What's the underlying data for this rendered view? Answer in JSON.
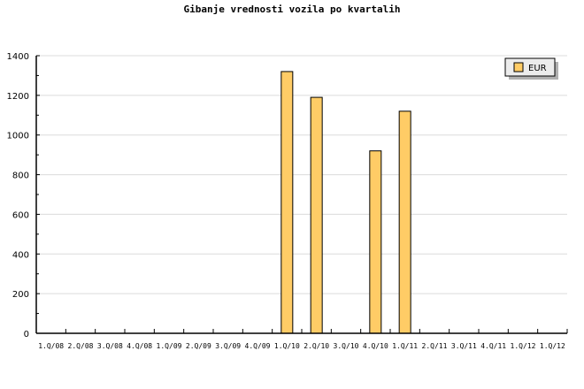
{
  "chart_data": {
    "type": "bar",
    "title": "Gibanje vrednosti vozila po kvartalih",
    "xlabel": "",
    "ylabel": "",
    "categories": [
      "1.Q/08",
      "2.Q/08",
      "3.Q/08",
      "4.Q/08",
      "1.Q/09",
      "2.Q/09",
      "3.Q/09",
      "4.Q/09",
      "1.Q/10",
      "2.Q/10",
      "3.Q/10",
      "4.Q/10",
      "1.Q/11",
      "2.Q/11",
      "3.Q/11",
      "4.Q/11",
      "1.Q/12",
      "1.Q/12"
    ],
    "series": [
      {
        "name": "EUR",
        "color": "#ffcc66",
        "values": [
          0,
          0,
          0,
          0,
          0,
          0,
          0,
          0,
          1320,
          1190,
          0,
          920,
          1120,
          0,
          0,
          0,
          0,
          0
        ]
      }
    ],
    "ylim": [
      0,
      1400
    ],
    "yticks": [
      0,
      200,
      400,
      600,
      800,
      1000,
      1200,
      1400
    ],
    "grid": true,
    "legend": "top-right"
  }
}
